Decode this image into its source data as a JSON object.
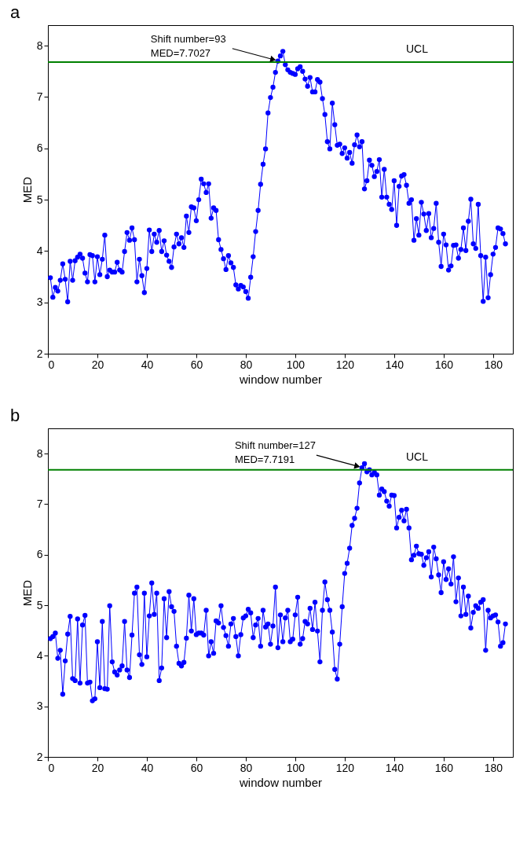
{
  "chart_data": [
    {
      "type": "line",
      "title": "a",
      "xlabel": "window number",
      "ylabel": "MED",
      "xlim": [
        0,
        188
      ],
      "ylim": [
        2,
        8.4
      ],
      "xticks": [
        0,
        20,
        40,
        60,
        80,
        100,
        120,
        140,
        160,
        180
      ],
      "yticks": [
        2,
        3,
        4,
        5,
        6,
        7,
        8
      ],
      "marker": "circle",
      "x": [
        1,
        2,
        3,
        4,
        5,
        6,
        7,
        8,
        9,
        10,
        11,
        12,
        13,
        14,
        15,
        16,
        17,
        18,
        19,
        20,
        21,
        22,
        23,
        24,
        25,
        26,
        27,
        28,
        29,
        30,
        31,
        32,
        33,
        34,
        35,
        36,
        37,
        38,
        39,
        40,
        41,
        42,
        43,
        44,
        45,
        46,
        47,
        48,
        49,
        50,
        51,
        52,
        53,
        54,
        55,
        56,
        57,
        58,
        59,
        60,
        61,
        62,
        63,
        64,
        65,
        66,
        67,
        68,
        69,
        70,
        71,
        72,
        73,
        74,
        75,
        76,
        77,
        78,
        79,
        80,
        81,
        82,
        83,
        84,
        85,
        86,
        87,
        88,
        89,
        90,
        91,
        92,
        93,
        94,
        95,
        96,
        97,
        98,
        99,
        100,
        101,
        102,
        103,
        104,
        105,
        106,
        107,
        108,
        109,
        110,
        111,
        112,
        113,
        114,
        115,
        116,
        117,
        118,
        119,
        120,
        121,
        122,
        123,
        124,
        125,
        126,
        127,
        128,
        129,
        130,
        131,
        132,
        133,
        134,
        135,
        136,
        137,
        138,
        139,
        140,
        141,
        142,
        143,
        144,
        145,
        146,
        147,
        148,
        149,
        150,
        151,
        152,
        153,
        154,
        155,
        156,
        157,
        158,
        159,
        160,
        161,
        162,
        163,
        164,
        165,
        166,
        167,
        168,
        169,
        170,
        171,
        172,
        173,
        174,
        175,
        176,
        177,
        178,
        179,
        180,
        181,
        182,
        183,
        184,
        185
      ],
      "series": [
        {
          "color": "#0000ff",
          "values": [
            3.48,
            3.1,
            3.29,
            3.22,
            3.43,
            3.75,
            3.45,
            3.01,
            3.8,
            3.43,
            3.81,
            3.88,
            3.94,
            3.86,
            3.57,
            3.4,
            3.93,
            3.91,
            3.4,
            3.89,
            3.54,
            3.84,
            4.31,
            3.5,
            3.63,
            3.59,
            3.59,
            3.78,
            3.63,
            3.59,
            3.99,
            4.36,
            4.21,
            4.45,
            4.22,
            3.4,
            3.84,
            3.52,
            3.19,
            3.66,
            4.41,
            3.99,
            4.33,
            4.17,
            4.4,
            3.99,
            4.2,
            3.92,
            3.8,
            3.68,
            4.08,
            4.33,
            4.14,
            4.26,
            4.07,
            4.68,
            4.36,
            4.86,
            4.84,
            4.59,
            5.0,
            5.4,
            5.31,
            5.14,
            5.31,
            4.64,
            4.84,
            4.79,
            4.22,
            4.03,
            3.85,
            3.64,
            3.91,
            3.77,
            3.68,
            3.34,
            3.26,
            3.33,
            3.3,
            3.21,
            3.08,
            3.49,
            3.89,
            4.38,
            4.79,
            5.3,
            5.69,
            5.99,
            6.69,
            6.99,
            7.19,
            7.48,
            7.7,
            7.8,
            7.89,
            7.63,
            7.53,
            7.48,
            7.46,
            7.44,
            7.55,
            7.59,
            7.5,
            7.35,
            7.21,
            7.38,
            7.1,
            7.1,
            7.34,
            7.29,
            6.97,
            6.66,
            6.13,
            5.99,
            6.88,
            6.46,
            6.06,
            6.08,
            5.9,
            6.01,
            5.81,
            5.92,
            5.71,
            6.07,
            6.26,
            6.03,
            6.13,
            5.21,
            5.37,
            5.77,
            5.67,
            5.45,
            5.55,
            5.78,
            5.05,
            5.59,
            5.05,
            4.91,
            4.81,
            5.37,
            4.5,
            5.26,
            5.46,
            5.49,
            5.28,
            4.93,
            5.0,
            4.21,
            4.63,
            4.31,
            4.95,
            4.72,
            4.4,
            4.73,
            4.26,
            4.44,
            4.93,
            4.17,
            3.7,
            4.33,
            4.12,
            3.63,
            3.71,
            4.11,
            4.12,
            3.86,
            4.03,
            4.45,
            4.01,
            4.58,
            5.01,
            4.14,
            4.05,
            4.91,
            3.91,
            3.02,
            3.88,
            3.09,
            3.54,
            3.94,
            4.07,
            4.45,
            4.43,
            4.34,
            4.14
          ]
        }
      ],
      "ref_lines": [
        {
          "axis": "y",
          "value": 7.68,
          "label": "UCL",
          "color": "#008000"
        }
      ],
      "annotations": [
        {
          "text": "Shift number=93\nMED=7.7027",
          "x": 93,
          "y": 7.7
        }
      ]
    },
    {
      "type": "line",
      "title": "b",
      "xlabel": "window number",
      "ylabel": "MED",
      "xlim": [
        0,
        188
      ],
      "ylim": [
        2,
        8.5
      ],
      "xticks": [
        0,
        20,
        40,
        60,
        80,
        100,
        120,
        140,
        160,
        180
      ],
      "yticks": [
        2,
        3,
        4,
        5,
        6,
        7,
        8
      ],
      "marker": "circle",
      "x": [
        1,
        2,
        3,
        4,
        5,
        6,
        7,
        8,
        9,
        10,
        11,
        12,
        13,
        14,
        15,
        16,
        17,
        18,
        19,
        20,
        21,
        22,
        23,
        24,
        25,
        26,
        27,
        28,
        29,
        30,
        31,
        32,
        33,
        34,
        35,
        36,
        37,
        38,
        39,
        40,
        41,
        42,
        43,
        44,
        45,
        46,
        47,
        48,
        49,
        50,
        51,
        52,
        53,
        54,
        55,
        56,
        57,
        58,
        59,
        60,
        61,
        62,
        63,
        64,
        65,
        66,
        67,
        68,
        69,
        70,
        71,
        72,
        73,
        74,
        75,
        76,
        77,
        78,
        79,
        80,
        81,
        82,
        83,
        84,
        85,
        86,
        87,
        88,
        89,
        90,
        91,
        92,
        93,
        94,
        95,
        96,
        97,
        98,
        99,
        100,
        101,
        102,
        103,
        104,
        105,
        106,
        107,
        108,
        109,
        110,
        111,
        112,
        113,
        114,
        115,
        116,
        117,
        118,
        119,
        120,
        121,
        122,
        123,
        124,
        125,
        126,
        127,
        128,
        129,
        130,
        131,
        132,
        133,
        134,
        135,
        136,
        137,
        138,
        139,
        140,
        141,
        142,
        143,
        144,
        145,
        146,
        147,
        148,
        149,
        150,
        151,
        152,
        153,
        154,
        155,
        156,
        157,
        158,
        159,
        160,
        161,
        162,
        163,
        164,
        165,
        166,
        167,
        168,
        169,
        170,
        171,
        172,
        173,
        174,
        175,
        176,
        177,
        178,
        179,
        180,
        181,
        182,
        183,
        184,
        185
      ],
      "series": [
        {
          "color": "#0000ff",
          "values": [
            4.34,
            4.38,
            4.45,
            3.95,
            4.11,
            3.24,
            3.9,
            4.43,
            4.78,
            3.55,
            3.51,
            4.73,
            3.46,
            4.61,
            4.8,
            3.46,
            3.48,
            3.11,
            3.15,
            4.28,
            3.37,
            4.68,
            3.35,
            3.34,
            4.99,
            3.88,
            3.68,
            3.62,
            3.72,
            3.8,
            4.68,
            3.72,
            3.57,
            4.41,
            5.24,
            5.36,
            4.02,
            3.83,
            5.24,
            3.98,
            4.79,
            5.44,
            4.82,
            5.24,
            3.51,
            3.76,
            5.13,
            4.36,
            5.27,
            4.97,
            4.88,
            4.19,
            3.85,
            3.8,
            3.87,
            4.35,
            5.2,
            4.49,
            5.13,
            4.42,
            4.45,
            4.45,
            4.41,
            4.9,
            4.0,
            4.28,
            4.05,
            4.69,
            4.65,
            4.99,
            4.56,
            4.4,
            4.19,
            4.63,
            4.74,
            4.38,
            4.0,
            4.42,
            4.75,
            4.79,
            4.92,
            4.85,
            4.36,
            4.61,
            4.74,
            4.19,
            4.9,
            4.57,
            4.63,
            4.23,
            4.59,
            5.36,
            4.16,
            4.81,
            4.28,
            4.75,
            4.9,
            4.28,
            4.33,
            4.81,
            5.16,
            4.23,
            4.34,
            4.68,
            4.63,
            4.94,
            4.52,
            5.06,
            4.49,
            3.88,
            4.9,
            5.46,
            5.11,
            4.9,
            4.47,
            3.73,
            3.54,
            4.23,
            4.97,
            5.63,
            5.83,
            6.13,
            6.58,
            6.72,
            6.92,
            7.42,
            7.72,
            7.8,
            7.64,
            7.68,
            7.58,
            7.63,
            7.58,
            7.18,
            7.3,
            7.25,
            7.06,
            6.96,
            7.18,
            7.17,
            6.53,
            6.74,
            6.88,
            6.67,
            6.9,
            6.53,
            5.9,
            5.99,
            6.17,
            6.02,
            6.01,
            5.79,
            5.94,
            6.06,
            5.56,
            6.15,
            5.92,
            5.6,
            5.25,
            5.86,
            5.51,
            5.72,
            5.42,
            5.96,
            5.07,
            5.54,
            4.79,
            5.36,
            4.82,
            5.18,
            4.55,
            4.86,
            4.99,
            4.94,
            5.06,
            5.11,
            4.11,
            4.9,
            4.75,
            4.79,
            4.81,
            4.67,
            4.19,
            4.26,
            4.63
          ]
        }
      ],
      "ref_lines": [
        {
          "axis": "y",
          "value": 7.68,
          "label": "UCL",
          "color": "#008000"
        }
      ],
      "annotations": [
        {
          "text": "Shift number=127\nMED=7.7191",
          "x": 127,
          "y": 7.72
        }
      ]
    }
  ]
}
